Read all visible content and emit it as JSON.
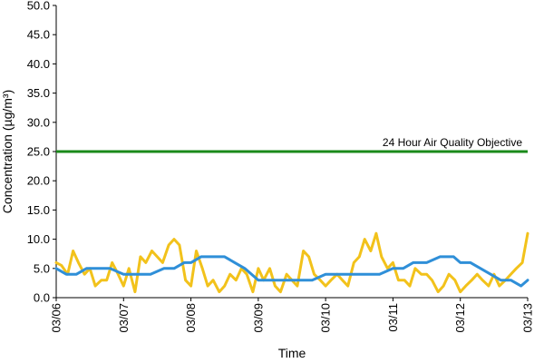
{
  "chart_data": {
    "type": "line",
    "title": "",
    "xlabel": "Time",
    "ylabel": "Concentration (µg/m³)",
    "ylim": [
      0,
      50
    ],
    "yticks": [
      "0.0",
      "5.0",
      "10.0",
      "15.0",
      "20.0",
      "25.0",
      "30.0",
      "35.0",
      "40.0",
      "45.0",
      "50.0"
    ],
    "x_ticks": [
      "03/06",
      "03/07",
      "03/08",
      "03/09",
      "03/10",
      "03/11",
      "03/12",
      "03/13"
    ],
    "grid": false,
    "objective": {
      "label": "24 Hour Air Quality Objective",
      "value": 25.0,
      "color": "#1a8a1a"
    },
    "series": [
      {
        "color": "#f2c21b",
        "x": [
          0,
          0.08,
          0.17,
          0.25,
          0.33,
          0.42,
          0.5,
          0.58,
          0.67,
          0.75,
          0.83,
          0.92,
          1.0,
          1.08,
          1.17,
          1.25,
          1.33,
          1.42,
          1.5,
          1.58,
          1.67,
          1.75,
          1.83,
          1.92,
          2.0,
          2.08,
          2.17,
          2.25,
          2.33,
          2.42,
          2.5,
          2.58,
          2.67,
          2.75,
          2.83,
          2.92,
          3.0,
          3.08,
          3.17,
          3.25,
          3.33,
          3.42,
          3.5,
          3.58,
          3.67,
          3.75,
          3.83,
          3.92,
          4.0,
          4.08,
          4.17,
          4.25,
          4.33,
          4.42,
          4.5,
          4.58,
          4.67,
          4.75,
          4.83,
          4.92,
          5.0,
          5.08,
          5.17,
          5.25,
          5.33,
          5.42,
          5.5,
          5.58,
          5.67,
          5.75,
          5.83,
          5.92,
          6.0,
          6.08,
          6.17,
          6.25,
          6.33,
          6.42,
          6.5,
          6.58,
          6.67,
          6.75,
          6.83,
          6.92,
          7.0
        ],
        "values": [
          6,
          5.5,
          4,
          8,
          6,
          4,
          5,
          2,
          3,
          3,
          6,
          4,
          2,
          5,
          1,
          7,
          6,
          8,
          7,
          6,
          9,
          10,
          9,
          3,
          2,
          8,
          5,
          2,
          3,
          1,
          2,
          4,
          3,
          5,
          4,
          1,
          5,
          3,
          5,
          2,
          1,
          4,
          3,
          2,
          8,
          7,
          4,
          3,
          2,
          3,
          4,
          3,
          2,
          6,
          7,
          10,
          8,
          11,
          7,
          5,
          6,
          3,
          3,
          2,
          5,
          4,
          4,
          3,
          1,
          2,
          4,
          3,
          1,
          2,
          3,
          4,
          3,
          2,
          4,
          2,
          3,
          4,
          5,
          6,
          11
        ]
      },
      {
        "color": "#2f8fd8",
        "x": [
          0,
          0.15,
          0.3,
          0.45,
          0.6,
          0.8,
          1.0,
          1.2,
          1.4,
          1.6,
          1.75,
          1.9,
          2.0,
          2.15,
          2.3,
          2.5,
          2.65,
          2.8,
          3.0,
          3.2,
          3.4,
          3.6,
          3.8,
          4.0,
          4.2,
          4.4,
          4.6,
          4.8,
          5.0,
          5.15,
          5.3,
          5.5,
          5.7,
          5.9,
          6.0,
          6.15,
          6.3,
          6.45,
          6.6,
          6.75,
          6.9,
          7.0
        ],
        "values": [
          5,
          4,
          4,
          5,
          5,
          5,
          4,
          4,
          4,
          5,
          5,
          6,
          6,
          7,
          7,
          7,
          6,
          5,
          3,
          3,
          3,
          3,
          3,
          4,
          4,
          4,
          4,
          4,
          5,
          5,
          6,
          6,
          7,
          7,
          6,
          6,
          5,
          4,
          3,
          3,
          2,
          3
        ]
      }
    ]
  }
}
